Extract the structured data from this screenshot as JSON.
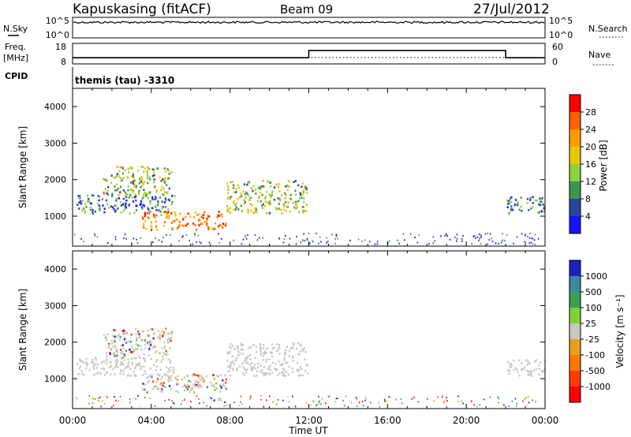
{
  "header": {
    "station": "Kapuskasing (fitACF)",
    "beam": "Beam 09",
    "date": "27/Jul/2012"
  },
  "top_panels": {
    "nsky_label": "N.Sky",
    "nsky_ticks": [
      "10^5",
      "10^0"
    ],
    "nsearch_label": "N.Search",
    "nsearch_ticks": [
      "10^5",
      "10^0"
    ],
    "freq_label_1": "Freq.",
    "freq_label_2": "[MHz]",
    "freq_ticks": [
      "18",
      "8"
    ],
    "nave_label": "Nave",
    "nave_ticks": [
      "60",
      "0"
    ],
    "cpid_label": "CPID",
    "cpid_text": "themis (tau) -3310",
    "nsky_trace_value": "10^5",
    "freq_steps": [
      {
        "from_h": 0,
        "to_h": 12,
        "mhz": 11
      },
      {
        "from_h": 12,
        "to_h": 22,
        "mhz": 14.5
      },
      {
        "from_h": 22,
        "to_h": 24,
        "mhz": 11
      }
    ]
  },
  "chart_data": [
    {
      "type": "heatmap",
      "title": "",
      "quantity": "Power",
      "ylabel": "Slant Range [km]",
      "xlabel": "",
      "xlim_hours": [
        0,
        24
      ],
      "ylim_km": [
        180,
        4500
      ],
      "y_ticks": [
        "4000",
        "3000",
        "2000",
        "1000"
      ],
      "colorbar_label": "Power [dB]",
      "colorbar_ticks": [
        "28",
        "24",
        "20",
        "16",
        "12",
        "8",
        "4"
      ],
      "colorbar_colors": [
        "#ff0000",
        "#ff6000",
        "#ff9c00",
        "#e6c800",
        "#8cd23c",
        "#3c9650",
        "#2846a0",
        "#1414ff"
      ],
      "regions": [
        {
          "t0": 0.2,
          "t1": 5.2,
          "r0": 1100,
          "r1": 1600,
          "level": "low"
        },
        {
          "t0": 1.5,
          "t1": 5.0,
          "r0": 1600,
          "r1": 2400,
          "level": "mid"
        },
        {
          "t0": 3.5,
          "t1": 7.8,
          "r0": 650,
          "r1": 1150,
          "level": "high"
        },
        {
          "t0": 7.8,
          "t1": 11.9,
          "r0": 1100,
          "r1": 2000,
          "level": "mid"
        },
        {
          "t0": 22.0,
          "t1": 24.0,
          "r0": 1100,
          "r1": 1550,
          "level": "low"
        }
      ]
    },
    {
      "type": "heatmap",
      "title": "",
      "quantity": "Velocity",
      "ylabel": "Slant Range [km]",
      "xlabel": "Time UT",
      "xlim_hours": [
        0,
        24
      ],
      "ylim_km": [
        180,
        4500
      ],
      "y_ticks": [
        "4000",
        "3000",
        "2000",
        "1000"
      ],
      "x_ticks": [
        "00:00",
        "04:00",
        "08:00",
        "12:00",
        "16:00",
        "20:00",
        "00:00"
      ],
      "colorbar_label": "Velocity [m s⁻¹]",
      "colorbar_ticks": [
        "1000",
        "500",
        "100",
        "25",
        "-25",
        "-100",
        "-500",
        "-1000"
      ],
      "colorbar_colors": [
        "#2020c0",
        "#3a8aa0",
        "#38a050",
        "#7ed03c",
        "#c8c8c0",
        "#e6a01e",
        "#ff7800",
        "#ff3c00",
        "#ff0000"
      ],
      "regions": [
        {
          "t0": 0.2,
          "t1": 5.2,
          "r0": 1100,
          "r1": 1600,
          "level": "ground"
        },
        {
          "t0": 1.5,
          "t1": 5.0,
          "r0": 1600,
          "r1": 2400,
          "level": "mixed"
        },
        {
          "t0": 3.5,
          "t1": 7.8,
          "r0": 650,
          "r1": 1150,
          "level": "mixed"
        },
        {
          "t0": 7.8,
          "t1": 11.9,
          "r0": 1100,
          "r1": 2000,
          "level": "ground"
        },
        {
          "t0": 22.0,
          "t1": 24.0,
          "r0": 1100,
          "r1": 1550,
          "level": "ground"
        }
      ]
    }
  ]
}
